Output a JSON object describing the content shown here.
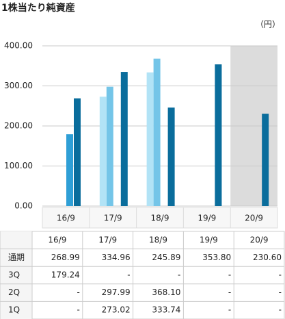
{
  "chart_data": {
    "type": "bar",
    "title": "1株当たり純資産",
    "unit": "（円）",
    "categories": [
      "16/9",
      "17/9",
      "18/9",
      "19/9",
      "20/9"
    ],
    "series": [
      {
        "name": "通期",
        "color": "#0a6d9c",
        "values": [
          268.99,
          334.96,
          245.89,
          353.8,
          230.6
        ],
        "value_labels": [
          "268.99",
          "334.96",
          "245.89",
          "353.80",
          "230.60"
        ]
      },
      {
        "name": "3Q",
        "color": "#2f9fd6",
        "values": [
          179.24,
          null,
          null,
          null,
          null
        ],
        "value_labels": [
          "179.24",
          "-",
          "-",
          "-",
          "-"
        ]
      },
      {
        "name": "2Q",
        "color": "#74c5e8",
        "values": [
          null,
          297.99,
          368.1,
          null,
          null
        ],
        "value_labels": [
          "-",
          "297.99",
          "368.10",
          "-",
          "-"
        ]
      },
      {
        "name": "1Q",
        "color": "#b2e3f6",
        "values": [
          null,
          273.02,
          333.74,
          null,
          null
        ],
        "value_labels": [
          "-",
          "273.02",
          "333.74",
          "-",
          "-"
        ]
      }
    ],
    "ylim": [
      0,
      400
    ],
    "yticks": [
      {
        "value": 0,
        "label": "0.00"
      },
      {
        "value": 100,
        "label": "100.00"
      },
      {
        "value": 200,
        "label": "200.00"
      },
      {
        "value": 300,
        "label": "300.00"
      },
      {
        "value": 400,
        "label": "400.00"
      }
    ],
    "grid": true
  }
}
